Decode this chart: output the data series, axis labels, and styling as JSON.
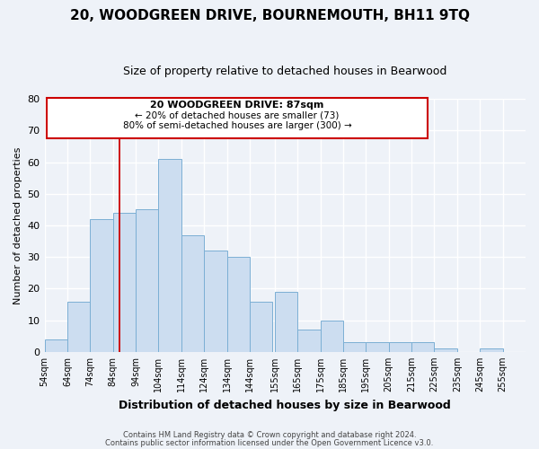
{
  "title": "20, WOODGREEN DRIVE, BOURNEMOUTH, BH11 9TQ",
  "subtitle": "Size of property relative to detached houses in Bearwood",
  "xlabel": "Distribution of detached houses by size in Bearwood",
  "ylabel": "Number of detached properties",
  "bar_color": "#ccddf0",
  "bar_edge_color": "#7bafd4",
  "background_color": "#eef2f8",
  "grid_color": "#ffffff",
  "bin_lefts": [
    54,
    64,
    74,
    84,
    94,
    104,
    114,
    124,
    134,
    144,
    155,
    165,
    175,
    185,
    195,
    205,
    215,
    225,
    235,
    245,
    255
  ],
  "counts": [
    4,
    16,
    42,
    44,
    45,
    61,
    37,
    32,
    30,
    16,
    19,
    7,
    10,
    3,
    3,
    3,
    3,
    1,
    0,
    1,
    0
  ],
  "tick_labels": [
    "54sqm",
    "64sqm",
    "74sqm",
    "84sqm",
    "94sqm",
    "104sqm",
    "114sqm",
    "124sqm",
    "134sqm",
    "144sqm",
    "155sqm",
    "165sqm",
    "175sqm",
    "185sqm",
    "195sqm",
    "205sqm",
    "215sqm",
    "225sqm",
    "235sqm",
    "245sqm",
    "255sqm"
  ],
  "ylim": [
    0,
    80
  ],
  "yticks": [
    0,
    10,
    20,
    30,
    40,
    50,
    60,
    70,
    80
  ],
  "xlim_left": 54,
  "xlim_right": 265,
  "property_line_x": 87,
  "annotation_title": "20 WOODGREEN DRIVE: 87sqm",
  "annotation_line1": "← 20% of detached houses are smaller (73)",
  "annotation_line2": "80% of semi-detached houses are larger (300) →",
  "footer1": "Contains HM Land Registry data © Crown copyright and database right 2024.",
  "footer2": "Contains public sector information licensed under the Open Government Licence v3.0."
}
